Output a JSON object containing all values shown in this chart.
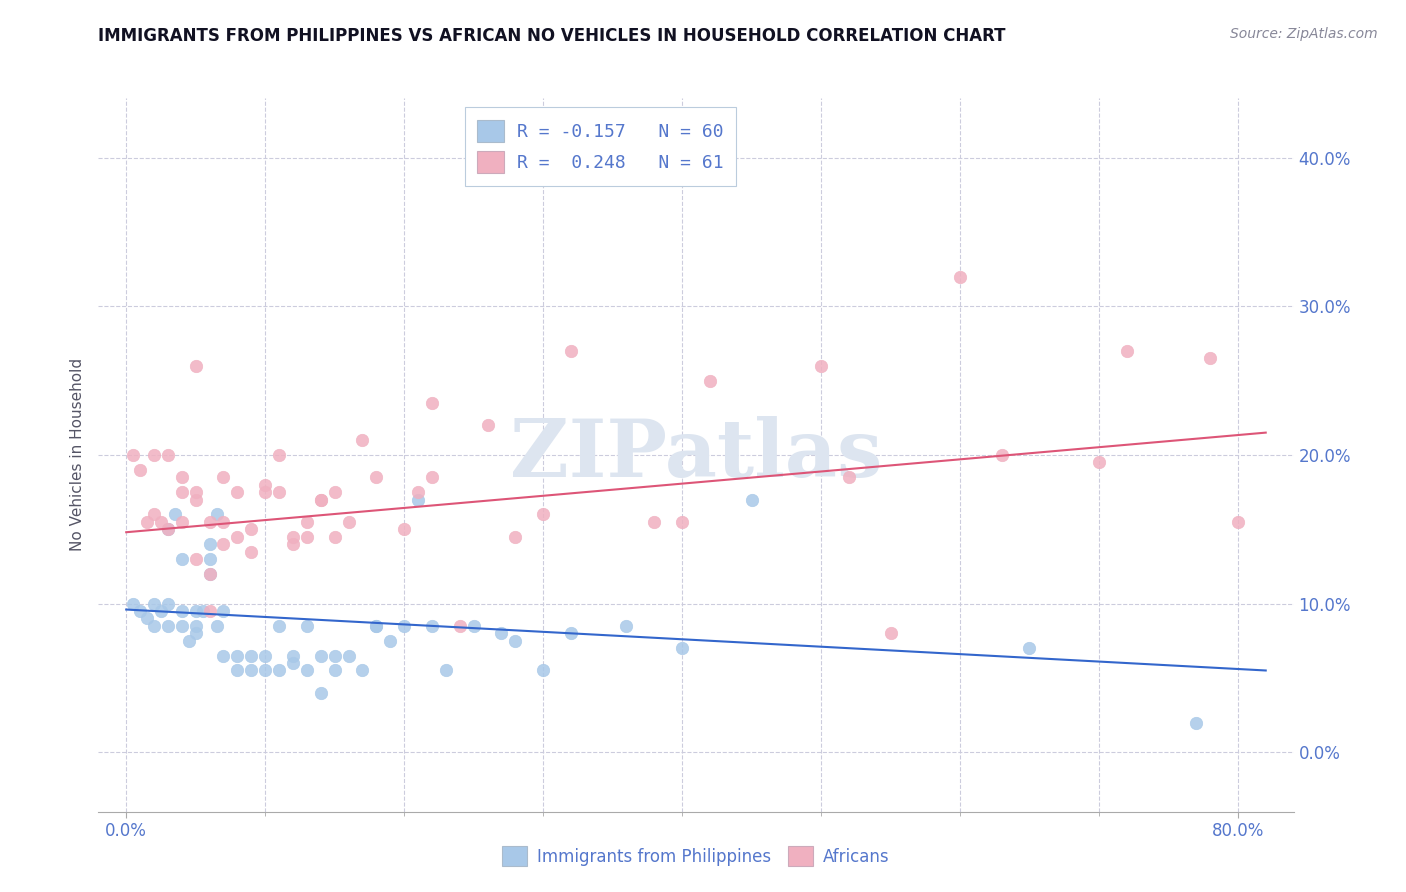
{
  "title": "IMMIGRANTS FROM PHILIPPINES VS AFRICAN NO VEHICLES IN HOUSEHOLD CORRELATION CHART",
  "source": "Source: ZipAtlas.com",
  "xlabel_ticks_shown": [
    "0.0%",
    "80.0%"
  ],
  "xlabel_tick_vals_shown": [
    0.0,
    0.8
  ],
  "xlabel_minor_vals": [
    0.1,
    0.2,
    0.3,
    0.4,
    0.5,
    0.6,
    0.7
  ],
  "ylabel_ticks": [
    "0.0%",
    "10.0%",
    "20.0%",
    "30.0%",
    "40.0%"
  ],
  "ylabel_tick_vals": [
    0.0,
    0.1,
    0.2,
    0.3,
    0.4
  ],
  "xlim": [
    -0.02,
    0.84
  ],
  "ylim": [
    -0.04,
    0.44
  ],
  "legend_r_blue": "R = -0.157",
  "legend_n_blue": "N = 60",
  "legend_r_pink": "R =  0.248",
  "legend_n_pink": "N = 61",
  "legend_label_blue": "Immigrants from Philippines",
  "legend_label_pink": "Africans",
  "blue_color": "#a8c8e8",
  "pink_color": "#f0b0c0",
  "blue_line_color": "#3366cc",
  "pink_line_color": "#dd5577",
  "tick_color": "#5577cc",
  "watermark_color": "#dde5f0",
  "blue_scatter_x": [
    0.005,
    0.01,
    0.015,
    0.02,
    0.02,
    0.025,
    0.03,
    0.03,
    0.03,
    0.035,
    0.04,
    0.04,
    0.04,
    0.045,
    0.05,
    0.05,
    0.05,
    0.055,
    0.06,
    0.06,
    0.06,
    0.065,
    0.065,
    0.07,
    0.07,
    0.08,
    0.08,
    0.09,
    0.09,
    0.1,
    0.1,
    0.11,
    0.11,
    0.12,
    0.12,
    0.13,
    0.13,
    0.14,
    0.14,
    0.15,
    0.15,
    0.16,
    0.17,
    0.18,
    0.18,
    0.19,
    0.2,
    0.21,
    0.22,
    0.23,
    0.25,
    0.27,
    0.28,
    0.3,
    0.32,
    0.36,
    0.4,
    0.45,
    0.65,
    0.77
  ],
  "blue_scatter_y": [
    0.1,
    0.095,
    0.09,
    0.1,
    0.085,
    0.095,
    0.1,
    0.085,
    0.15,
    0.16,
    0.13,
    0.095,
    0.085,
    0.075,
    0.095,
    0.085,
    0.08,
    0.095,
    0.14,
    0.13,
    0.12,
    0.16,
    0.085,
    0.095,
    0.065,
    0.065,
    0.055,
    0.065,
    0.055,
    0.065,
    0.055,
    0.085,
    0.055,
    0.065,
    0.06,
    0.085,
    0.055,
    0.065,
    0.04,
    0.065,
    0.055,
    0.065,
    0.055,
    0.085,
    0.085,
    0.075,
    0.085,
    0.17,
    0.085,
    0.055,
    0.085,
    0.08,
    0.075,
    0.055,
    0.08,
    0.085,
    0.07,
    0.17,
    0.07,
    0.02
  ],
  "pink_scatter_x": [
    0.005,
    0.01,
    0.015,
    0.02,
    0.02,
    0.025,
    0.03,
    0.03,
    0.04,
    0.04,
    0.04,
    0.05,
    0.05,
    0.05,
    0.05,
    0.06,
    0.06,
    0.06,
    0.07,
    0.07,
    0.07,
    0.08,
    0.08,
    0.09,
    0.09,
    0.1,
    0.1,
    0.11,
    0.11,
    0.12,
    0.12,
    0.13,
    0.13,
    0.14,
    0.14,
    0.15,
    0.15,
    0.16,
    0.17,
    0.18,
    0.2,
    0.21,
    0.22,
    0.22,
    0.24,
    0.26,
    0.28,
    0.3,
    0.32,
    0.38,
    0.4,
    0.42,
    0.5,
    0.52,
    0.55,
    0.6,
    0.63,
    0.7,
    0.72,
    0.78,
    0.8
  ],
  "pink_scatter_y": [
    0.2,
    0.19,
    0.155,
    0.16,
    0.2,
    0.155,
    0.15,
    0.2,
    0.155,
    0.175,
    0.185,
    0.13,
    0.17,
    0.175,
    0.26,
    0.12,
    0.155,
    0.095,
    0.14,
    0.155,
    0.185,
    0.175,
    0.145,
    0.15,
    0.135,
    0.18,
    0.175,
    0.2,
    0.175,
    0.14,
    0.145,
    0.155,
    0.145,
    0.17,
    0.17,
    0.175,
    0.145,
    0.155,
    0.21,
    0.185,
    0.15,
    0.175,
    0.185,
    0.235,
    0.085,
    0.22,
    0.145,
    0.16,
    0.27,
    0.155,
    0.155,
    0.25,
    0.26,
    0.185,
    0.08,
    0.32,
    0.2,
    0.195,
    0.27,
    0.265,
    0.155
  ],
  "blue_trend_x_start": 0.0,
  "blue_trend_x_end": 0.82,
  "blue_trend_y_start": 0.096,
  "blue_trend_y_end": 0.055,
  "pink_trend_x_start": 0.0,
  "pink_trend_x_end": 0.82,
  "pink_trend_y_start": 0.148,
  "pink_trend_y_end": 0.215
}
